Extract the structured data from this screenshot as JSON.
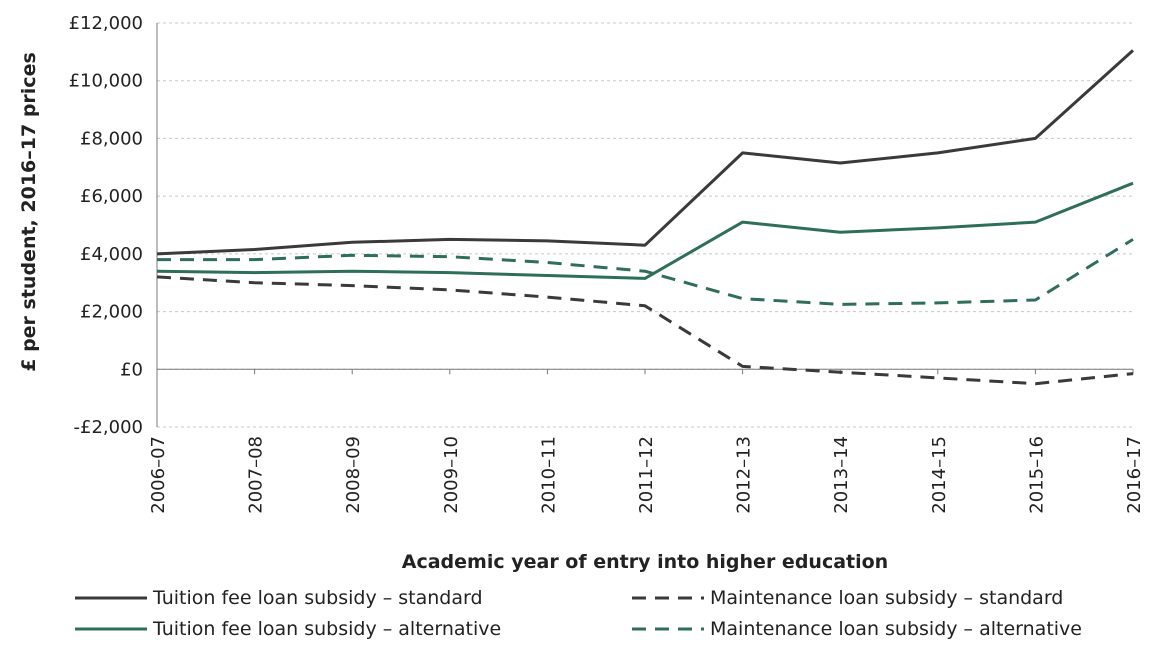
{
  "chart_data": {
    "type": "line",
    "title": "",
    "xlabel": "Academic year of entry into higher education",
    "ylabel": "£ per student, 2016–17 prices",
    "categories": [
      "2006–07",
      "2007–08",
      "2008–09",
      "2009–10",
      "2010–11",
      "2011–12",
      "2012–13",
      "2013–14",
      "2014–15",
      "2015–16",
      "2016–17"
    ],
    "ylim": [
      -2000,
      12000
    ],
    "yticks": [
      -2000,
      0,
      2000,
      4000,
      6000,
      8000,
      10000,
      12000
    ],
    "ytick_labels": [
      "-£2,000",
      "£0",
      "£2,000",
      "£4,000",
      "£6,000",
      "£8,000",
      "£10,000",
      "£12,000"
    ],
    "grid": "horizontal",
    "legend_position": "bottom",
    "series": [
      {
        "name": "Tuition fee loan subsidy – standard",
        "color": "#3a3a3a",
        "dash": "solid",
        "values": [
          4000,
          4150,
          4400,
          4500,
          4450,
          4300,
          7500,
          7150,
          7500,
          8000,
          11050
        ]
      },
      {
        "name": "Maintenance loan subsidy – standard",
        "color": "#3a3a3a",
        "dash": "dashed",
        "values": [
          3200,
          3000,
          2900,
          2750,
          2500,
          2200,
          100,
          -100,
          -300,
          -500,
          -150
        ]
      },
      {
        "name": "Tuition fee loan subsidy – alternative",
        "color": "#2f6e57",
        "dash": "solid",
        "values": [
          3400,
          3350,
          3400,
          3350,
          3250,
          3150,
          5100,
          4750,
          4900,
          5100,
          6450
        ]
      },
      {
        "name": "Maintenance loan subsidy – alternative",
        "color": "#2f6e57",
        "dash": "dashed",
        "values": [
          3800,
          3800,
          3950,
          3900,
          3700,
          3400,
          2450,
          2250,
          2300,
          2400,
          4500
        ]
      }
    ]
  }
}
